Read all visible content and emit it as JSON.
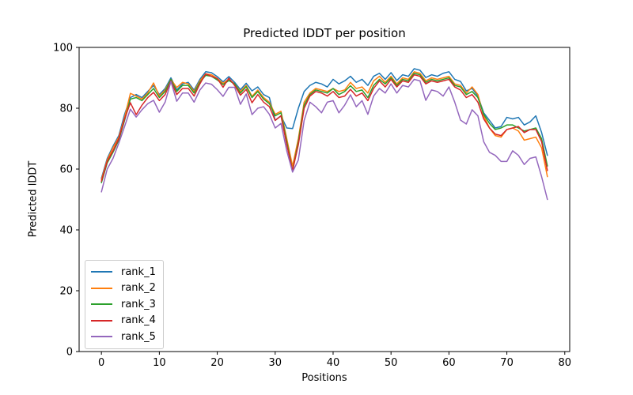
{
  "chart_data": {
    "type": "line",
    "title": "Predicted lDDT per position",
    "xlabel": "Positions",
    "ylabel": "Predicted lDDT",
    "xlim": [
      -3.85,
      80.85
    ],
    "ylim": [
      0,
      100
    ],
    "x_ticks": [
      0,
      10,
      20,
      30,
      40,
      50,
      60,
      70,
      80
    ],
    "y_ticks": [
      0,
      20,
      40,
      60,
      80,
      100
    ],
    "grid": false,
    "legend_position": "lower left",
    "x": [
      0,
      1,
      2,
      3,
      4,
      5,
      6,
      7,
      8,
      9,
      10,
      11,
      12,
      13,
      14,
      15,
      16,
      17,
      18,
      19,
      20,
      21,
      22,
      23,
      24,
      25,
      26,
      27,
      28,
      29,
      30,
      31,
      32,
      33,
      34,
      35,
      36,
      37,
      38,
      39,
      40,
      41,
      42,
      43,
      44,
      45,
      46,
      47,
      48,
      49,
      50,
      51,
      52,
      53,
      54,
      55,
      56,
      57,
      58,
      59,
      60,
      61,
      62,
      63,
      64,
      65,
      66,
      67,
      68,
      69,
      70,
      71,
      72,
      73,
      74,
      75,
      76,
      77
    ],
    "series": [
      {
        "name": "rank_1",
        "color": "#1f77b4",
        "values": [
          57.0,
          63.5,
          67.5,
          71.0,
          78.0,
          83.5,
          84.5,
          83.5,
          85.5,
          87.5,
          84.5,
          86.5,
          90.0,
          86.0,
          88.0,
          88.5,
          86.0,
          89.5,
          92.0,
          91.7,
          90.4,
          88.7,
          90.4,
          88.5,
          86.1,
          88.2,
          85.7,
          87.0,
          84.5,
          83.5,
          76.0,
          77.5,
          73.5,
          73.3,
          80.0,
          85.5,
          87.5,
          88.5,
          88.0,
          87.0,
          89.5,
          88.0,
          89.0,
          90.5,
          88.5,
          89.5,
          87.5,
          90.5,
          91.5,
          89.5,
          91.7,
          89.1,
          91.0,
          90.5,
          93.0,
          92.5,
          90.1,
          91.0,
          90.5,
          91.5,
          92.0,
          89.5,
          88.8,
          85.7,
          86.5,
          84.0,
          78.5,
          76.0,
          73.5,
          74.0,
          77.0,
          76.5,
          77.0,
          74.5,
          75.5,
          77.5,
          72.0,
          64.5
        ]
      },
      {
        "name": "rank_2",
        "color": "#ff7f0e",
        "values": [
          56.5,
          63.0,
          67.0,
          70.5,
          77.0,
          84.9,
          84.0,
          83.0,
          85.0,
          88.3,
          84.0,
          86.0,
          89.5,
          86.8,
          88.5,
          88.0,
          85.5,
          89.0,
          91.3,
          91.0,
          89.8,
          88.2,
          89.5,
          88.0,
          85.5,
          87.5,
          83.9,
          86.0,
          83.5,
          82.0,
          78.0,
          79.0,
          70.0,
          61.0,
          70.0,
          82.0,
          85.0,
          86.5,
          86.0,
          85.5,
          86.5,
          85.5,
          86.0,
          88.5,
          86.5,
          87.0,
          85.0,
          89.0,
          90.5,
          88.5,
          90.5,
          88.0,
          90.0,
          89.5,
          92.0,
          91.5,
          89.0,
          90.0,
          89.5,
          90.0,
          90.5,
          88.0,
          87.5,
          85.0,
          87.0,
          84.5,
          77.5,
          73.5,
          71.0,
          70.5,
          73.0,
          73.5,
          72.5,
          69.5,
          70.0,
          70.5,
          67.0,
          57.5
        ]
      },
      {
        "name": "rank_3",
        "color": "#2ca02c",
        "values": [
          55.5,
          62.0,
          65.5,
          69.5,
          76.0,
          83.0,
          83.5,
          82.5,
          84.5,
          86.5,
          83.5,
          85.5,
          89.5,
          85.5,
          87.5,
          87.5,
          85.0,
          88.5,
          90.8,
          90.5,
          89.3,
          87.8,
          89.1,
          88.0,
          85.0,
          87.1,
          83.5,
          85.5,
          83.0,
          81.5,
          77.5,
          78.5,
          69.0,
          59.5,
          69.0,
          81.0,
          84.5,
          86.0,
          85.5,
          85.0,
          86.5,
          84.5,
          85.5,
          87.4,
          85.5,
          86.0,
          83.5,
          87.5,
          89.5,
          88.0,
          90.0,
          87.5,
          89.5,
          89.0,
          91.5,
          91.0,
          88.5,
          89.5,
          89.0,
          89.5,
          90.0,
          87.5,
          87.0,
          84.5,
          85.5,
          83.5,
          78.0,
          75.0,
          73.0,
          73.5,
          74.5,
          74.5,
          73.5,
          72.5,
          73.0,
          73.5,
          70.0,
          61.0
        ]
      },
      {
        "name": "rank_4",
        "color": "#d62728",
        "values": [
          56.0,
          62.5,
          66.0,
          70.0,
          76.5,
          81.8,
          77.9,
          81.0,
          83.5,
          85.2,
          82.5,
          84.5,
          89.0,
          84.5,
          86.5,
          86.5,
          84.0,
          88.0,
          91.3,
          90.5,
          89.8,
          86.9,
          89.9,
          87.5,
          84.3,
          86.2,
          81.8,
          84.5,
          82.0,
          80.5,
          76.0,
          77.5,
          68.0,
          59.5,
          68.0,
          80.0,
          84.0,
          85.5,
          85.0,
          84.0,
          85.5,
          83.5,
          84.0,
          86.2,
          84.0,
          85.0,
          82.5,
          86.5,
          89.0,
          87.0,
          89.5,
          87.0,
          89.0,
          88.5,
          91.0,
          90.5,
          88.0,
          89.0,
          88.5,
          89.0,
          89.5,
          87.0,
          86.0,
          83.5,
          84.5,
          82.0,
          76.5,
          73.5,
          71.5,
          71.0,
          73.0,
          73.5,
          74.0,
          72.0,
          73.0,
          73.0,
          69.0,
          59.5
        ]
      },
      {
        "name": "rank_5",
        "color": "#9467bd",
        "values": [
          52.5,
          60.0,
          63.5,
          68.5,
          74.0,
          79.7,
          77.1,
          79.5,
          81.5,
          82.6,
          78.7,
          82.0,
          88.8,
          82.3,
          85.0,
          85.0,
          82.0,
          86.0,
          88.3,
          87.9,
          86.1,
          83.9,
          86.9,
          86.9,
          81.3,
          84.7,
          77.9,
          80.0,
          80.5,
          78.0,
          73.5,
          75.0,
          66.0,
          59.0,
          63.0,
          76.0,
          82.0,
          80.5,
          78.5,
          82.0,
          82.5,
          78.5,
          81.0,
          84.4,
          80.5,
          82.5,
          78.0,
          84.0,
          86.5,
          85.0,
          88.0,
          85.0,
          87.5,
          87.0,
          89.5,
          89.0,
          82.6,
          86.0,
          85.5,
          84.0,
          87.0,
          82.0,
          76.1,
          74.8,
          79.5,
          77.5,
          69.0,
          65.5,
          64.5,
          62.5,
          62.5,
          66.0,
          64.5,
          61.5,
          63.5,
          64.0,
          57.5,
          50.0
        ]
      }
    ]
  }
}
